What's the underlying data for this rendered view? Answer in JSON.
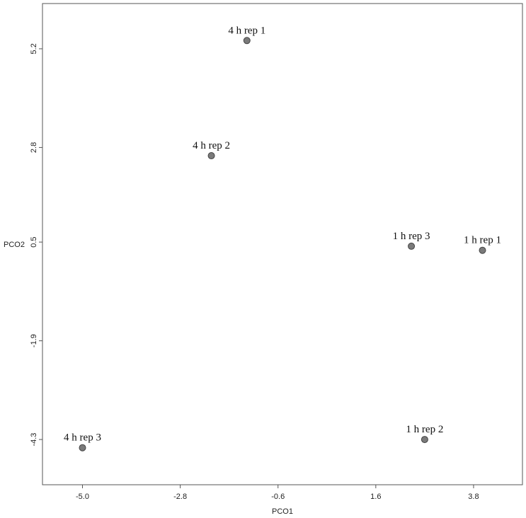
{
  "chart_data": {
    "type": "scatter",
    "title": "",
    "xlabel": "PCO1",
    "ylabel": "PCO2",
    "xlim": [
      -5.9,
      4.9
    ],
    "ylim": [
      -5.4,
      6.3
    ],
    "x_ticks": [
      -5.0,
      -2.8,
      -0.6,
      1.6,
      3.8
    ],
    "x_tick_labels": [
      "-5.0",
      "-2.8",
      "-0.6",
      "1.6",
      "3.8"
    ],
    "y_ticks": [
      5.2,
      2.8,
      0.5,
      -1.9,
      -4.3
    ],
    "y_tick_labels": [
      "5.2",
      "2.8",
      "0.5",
      "-1.9",
      "-4.3"
    ],
    "grid": false,
    "point_color": "#7a7a7a",
    "points": [
      {
        "label": "4 h rep 1",
        "x": -1.3,
        "y": 5.4
      },
      {
        "label": "4 h rep 2",
        "x": -2.1,
        "y": 2.6
      },
      {
        "label": "1 h rep 3",
        "x": 2.4,
        "y": 0.4
      },
      {
        "label": "1 h rep 1",
        "x": 4.0,
        "y": 0.3
      },
      {
        "label": "4 h rep 3",
        "x": -5.0,
        "y": -4.5
      },
      {
        "label": "1 h rep 2",
        "x": 2.7,
        "y": -4.3
      }
    ]
  }
}
